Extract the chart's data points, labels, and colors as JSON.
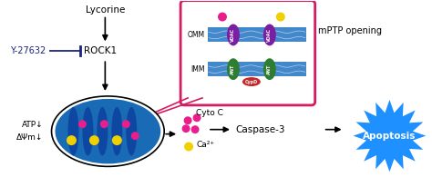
{
  "bg_color": "#ffffff",
  "lycorine_text": "Lycorine",
  "y27632_text": "Y-27632",
  "rock1_text": "ROCK1",
  "omm_text": "OMM",
  "imm_text": "IMM",
  "mptp_text": "mPTP opening",
  "cytoc_text": "Cyto C",
  "ca_text": "Ca²⁺",
  "caspase_text": "Caspase-3",
  "apoptosis_text": "Apoptosis",
  "dark_blue": "#1a237e",
  "pink_color": "#e91e8c",
  "yellow_color": "#f0d000",
  "purple_color": "#7b1fa2",
  "green_color": "#2e7d32",
  "red_color": "#c62828",
  "steel_blue": "#1565c0",
  "membrane_blue": "#4488cc",
  "box_border": "#d81b60",
  "cyan_star": "#1e90ff",
  "gray_arrow": "#888888"
}
